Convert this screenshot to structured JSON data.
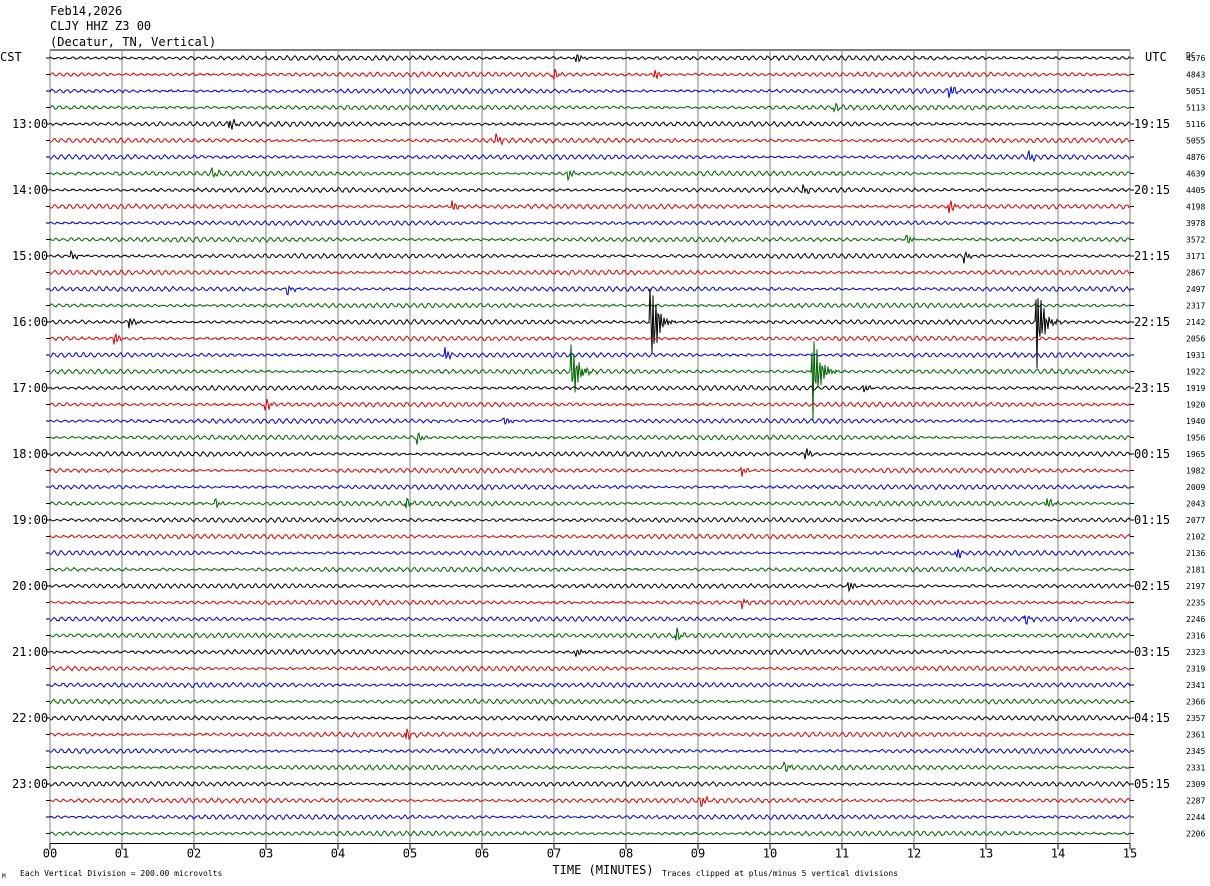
{
  "header": {
    "date": "Feb14,2026",
    "station": "CLJY HHZ Z3 00",
    "location": "(Decatur, TN, Vertical)"
  },
  "labels": {
    "left_zone": "CST",
    "right_zone": "UTC",
    "dc": "DC"
  },
  "footer": {
    "scale_note": "Each Vertical Division = 200.00 microvolts",
    "clip_note": "Traces clipped at plus/minus 5 vertical divisions",
    "corner_mark": "M"
  },
  "colors": {
    "trace_cycle": [
      "#000000",
      "#e00000",
      "#0000e0",
      "#006400"
    ],
    "grid": "#808080",
    "background": "#ffffff"
  },
  "chart_data": {
    "type": "helicorder",
    "xlabel": "TIME (MINUTES)",
    "xlim": [
      0,
      15
    ],
    "x_ticks": [
      "00",
      "01",
      "02",
      "03",
      "04",
      "05",
      "06",
      "07",
      "08",
      "09",
      "10",
      "11",
      "12",
      "13",
      "14",
      "15"
    ],
    "minutes_per_line": 15,
    "lines_per_hour": 4,
    "left_hour_labels": [
      "13:00",
      "14:00",
      "15:00",
      "16:00",
      "17:00",
      "18:00",
      "19:00",
      "20:00",
      "21:00",
      "22:00",
      "23:00"
    ],
    "right_hour_labels": [
      "19:15",
      "20:15",
      "21:15",
      "22:15",
      "23:15",
      "00:15",
      "01:15",
      "02:15",
      "03:15",
      "04:15",
      "05:15"
    ],
    "dc_offsets": [
      4576,
      4843,
      5051,
      5113,
      5116,
      5055,
      4876,
      4639,
      4405,
      4198,
      3978,
      3572,
      3171,
      2867,
      2497,
      2317,
      2142,
      2056,
      1931,
      1922,
      1919,
      1920,
      1940,
      1956,
      1965,
      1982,
      2009,
      2043,
      2077,
      2102,
      2136,
      2181,
      2197,
      2235,
      2246,
      2316,
      2323,
      2319,
      2341,
      2366,
      2357,
      2361,
      2345,
      2331,
      2309,
      2287,
      2244,
      2206
    ],
    "large_events": [
      {
        "line": 16,
        "minute": 8.35,
        "amplitude": 3.0
      },
      {
        "line": 16,
        "minute": 13.7,
        "amplitude": 3.0
      },
      {
        "line": 19,
        "minute": 10.6,
        "amplitude": 3.0
      },
      {
        "line": 19,
        "minute": 7.25,
        "amplitude": 1.8
      }
    ],
    "small_events": [
      {
        "line": 0,
        "minute": 7.3
      },
      {
        "line": 1,
        "minute": 7.0
      },
      {
        "line": 1,
        "minute": 8.4
      },
      {
        "line": 2,
        "minute": 12.5
      },
      {
        "line": 3,
        "minute": 10.9
      },
      {
        "line": 4,
        "minute": 2.5
      },
      {
        "line": 5,
        "minute": 6.2
      },
      {
        "line": 6,
        "minute": 13.6
      },
      {
        "line": 7,
        "minute": 7.2
      },
      {
        "line": 7,
        "minute": 2.25
      },
      {
        "line": 8,
        "minute": 10.45
      },
      {
        "line": 9,
        "minute": 5.6
      },
      {
        "line": 9,
        "minute": 12.5
      },
      {
        "line": 11,
        "minute": 11.9
      },
      {
        "line": 12,
        "minute": 0.3
      },
      {
        "line": 12,
        "minute": 12.7
      },
      {
        "line": 14,
        "minute": 3.3
      },
      {
        "line": 16,
        "minute": 1.1
      },
      {
        "line": 17,
        "minute": 0.9
      },
      {
        "line": 18,
        "minute": 5.5
      },
      {
        "line": 20,
        "minute": 11.3
      },
      {
        "line": 21,
        "minute": 3.0
      },
      {
        "line": 22,
        "minute": 6.3
      },
      {
        "line": 23,
        "minute": 5.1
      },
      {
        "line": 24,
        "minute": 10.5
      },
      {
        "line": 25,
        "minute": 9.6
      },
      {
        "line": 27,
        "minute": 2.3
      },
      {
        "line": 27,
        "minute": 4.95
      },
      {
        "line": 27,
        "minute": 13.85
      },
      {
        "line": 30,
        "minute": 12.6
      },
      {
        "line": 32,
        "minute": 11.1
      },
      {
        "line": 33,
        "minute": 9.6
      },
      {
        "line": 34,
        "minute": 13.55
      },
      {
        "line": 35,
        "minute": 8.7
      },
      {
        "line": 36,
        "minute": 7.3
      },
      {
        "line": 41,
        "minute": 4.95
      },
      {
        "line": 43,
        "minute": 10.2
      },
      {
        "line": 45,
        "minute": 9.05
      }
    ]
  }
}
